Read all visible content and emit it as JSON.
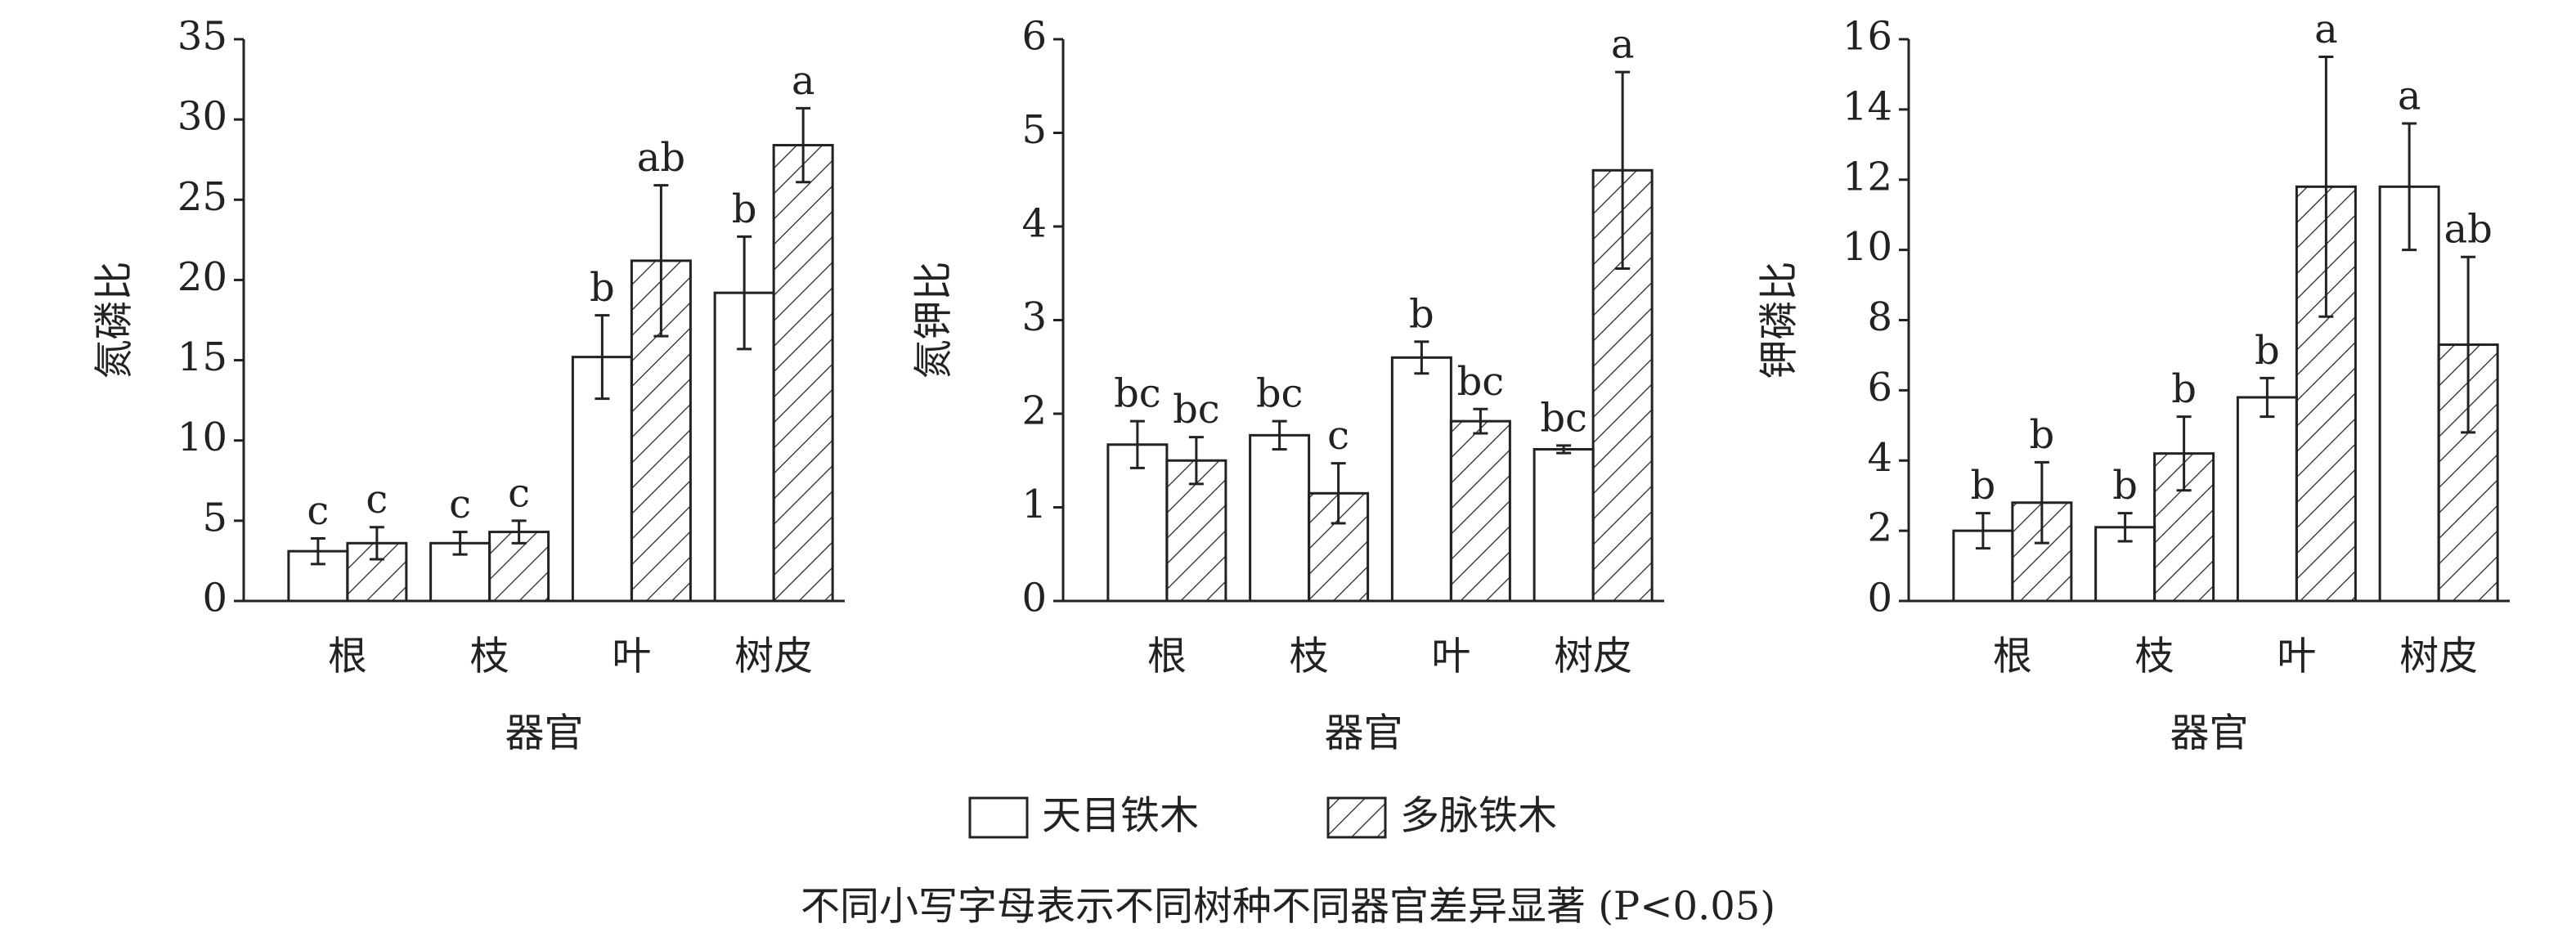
{
  "chart_data": [
    {
      "type": "bar",
      "y_label": "氮磷比",
      "x_label": "器官",
      "categories": [
        "根",
        "枝",
        "叶",
        "树皮"
      ],
      "ylim": [
        0,
        35
      ],
      "yticks": [
        0,
        5,
        10,
        15,
        20,
        25,
        30,
        35
      ],
      "series": [
        {
          "name": "天目铁木",
          "color": "#ffffff",
          "pattern": "none",
          "values": [
            3.1,
            3.6,
            15.2,
            19.2
          ],
          "errors": [
            0.8,
            0.7,
            2.6,
            3.5
          ],
          "letters": [
            "c",
            "c",
            "b",
            "b"
          ]
        },
        {
          "name": "多脉铁木",
          "color": "#ffffff",
          "pattern": "hatch",
          "values": [
            3.6,
            4.3,
            21.2,
            28.4
          ],
          "errors": [
            1.0,
            0.7,
            4.7,
            2.3
          ],
          "letters": [
            "c",
            "c",
            "ab",
            "a"
          ]
        }
      ]
    },
    {
      "type": "bar",
      "y_label": "氮钾比",
      "x_label": "器官",
      "categories": [
        "根",
        "枝",
        "叶",
        "树皮"
      ],
      "ylim": [
        0,
        6
      ],
      "yticks": [
        0,
        1,
        2,
        3,
        4,
        5,
        6
      ],
      "series": [
        {
          "name": "天目铁木",
          "color": "#ffffff",
          "pattern": "none",
          "values": [
            1.67,
            1.77,
            2.6,
            1.62
          ],
          "errors": [
            0.25,
            0.15,
            0.17,
            0.04
          ],
          "letters": [
            "bc",
            "bc",
            "b",
            "bc"
          ]
        },
        {
          "name": "多脉铁木",
          "color": "#ffffff",
          "pattern": "hatch",
          "values": [
            1.5,
            1.15,
            1.92,
            4.6
          ],
          "errors": [
            0.25,
            0.32,
            0.13,
            1.05
          ],
          "letters": [
            "bc",
            "c",
            "bc",
            "a"
          ]
        }
      ]
    },
    {
      "type": "bar",
      "y_label": "钾磷比",
      "x_label": "器官",
      "categories": [
        "根",
        "枝",
        "叶",
        "树皮"
      ],
      "ylim": [
        0,
        16
      ],
      "yticks": [
        0,
        2,
        4,
        6,
        8,
        10,
        12,
        14,
        16
      ],
      "series": [
        {
          "name": "天目铁木",
          "color": "#ffffff",
          "pattern": "none",
          "values": [
            2.0,
            2.1,
            5.8,
            11.8
          ],
          "errors": [
            0.5,
            0.4,
            0.55,
            1.8
          ],
          "letters": [
            "b",
            "b",
            "b",
            "a"
          ]
        },
        {
          "name": "多脉铁木",
          "color": "#ffffff",
          "pattern": "hatch",
          "values": [
            2.8,
            4.2,
            11.8,
            7.3
          ],
          "errors": [
            1.15,
            1.05,
            3.7,
            2.5
          ],
          "letters": [
            "b",
            "b",
            "a",
            "ab"
          ]
        }
      ]
    }
  ],
  "note": "不同小写字母表示不同树种不同器官差异显著 (P<0.05)"
}
